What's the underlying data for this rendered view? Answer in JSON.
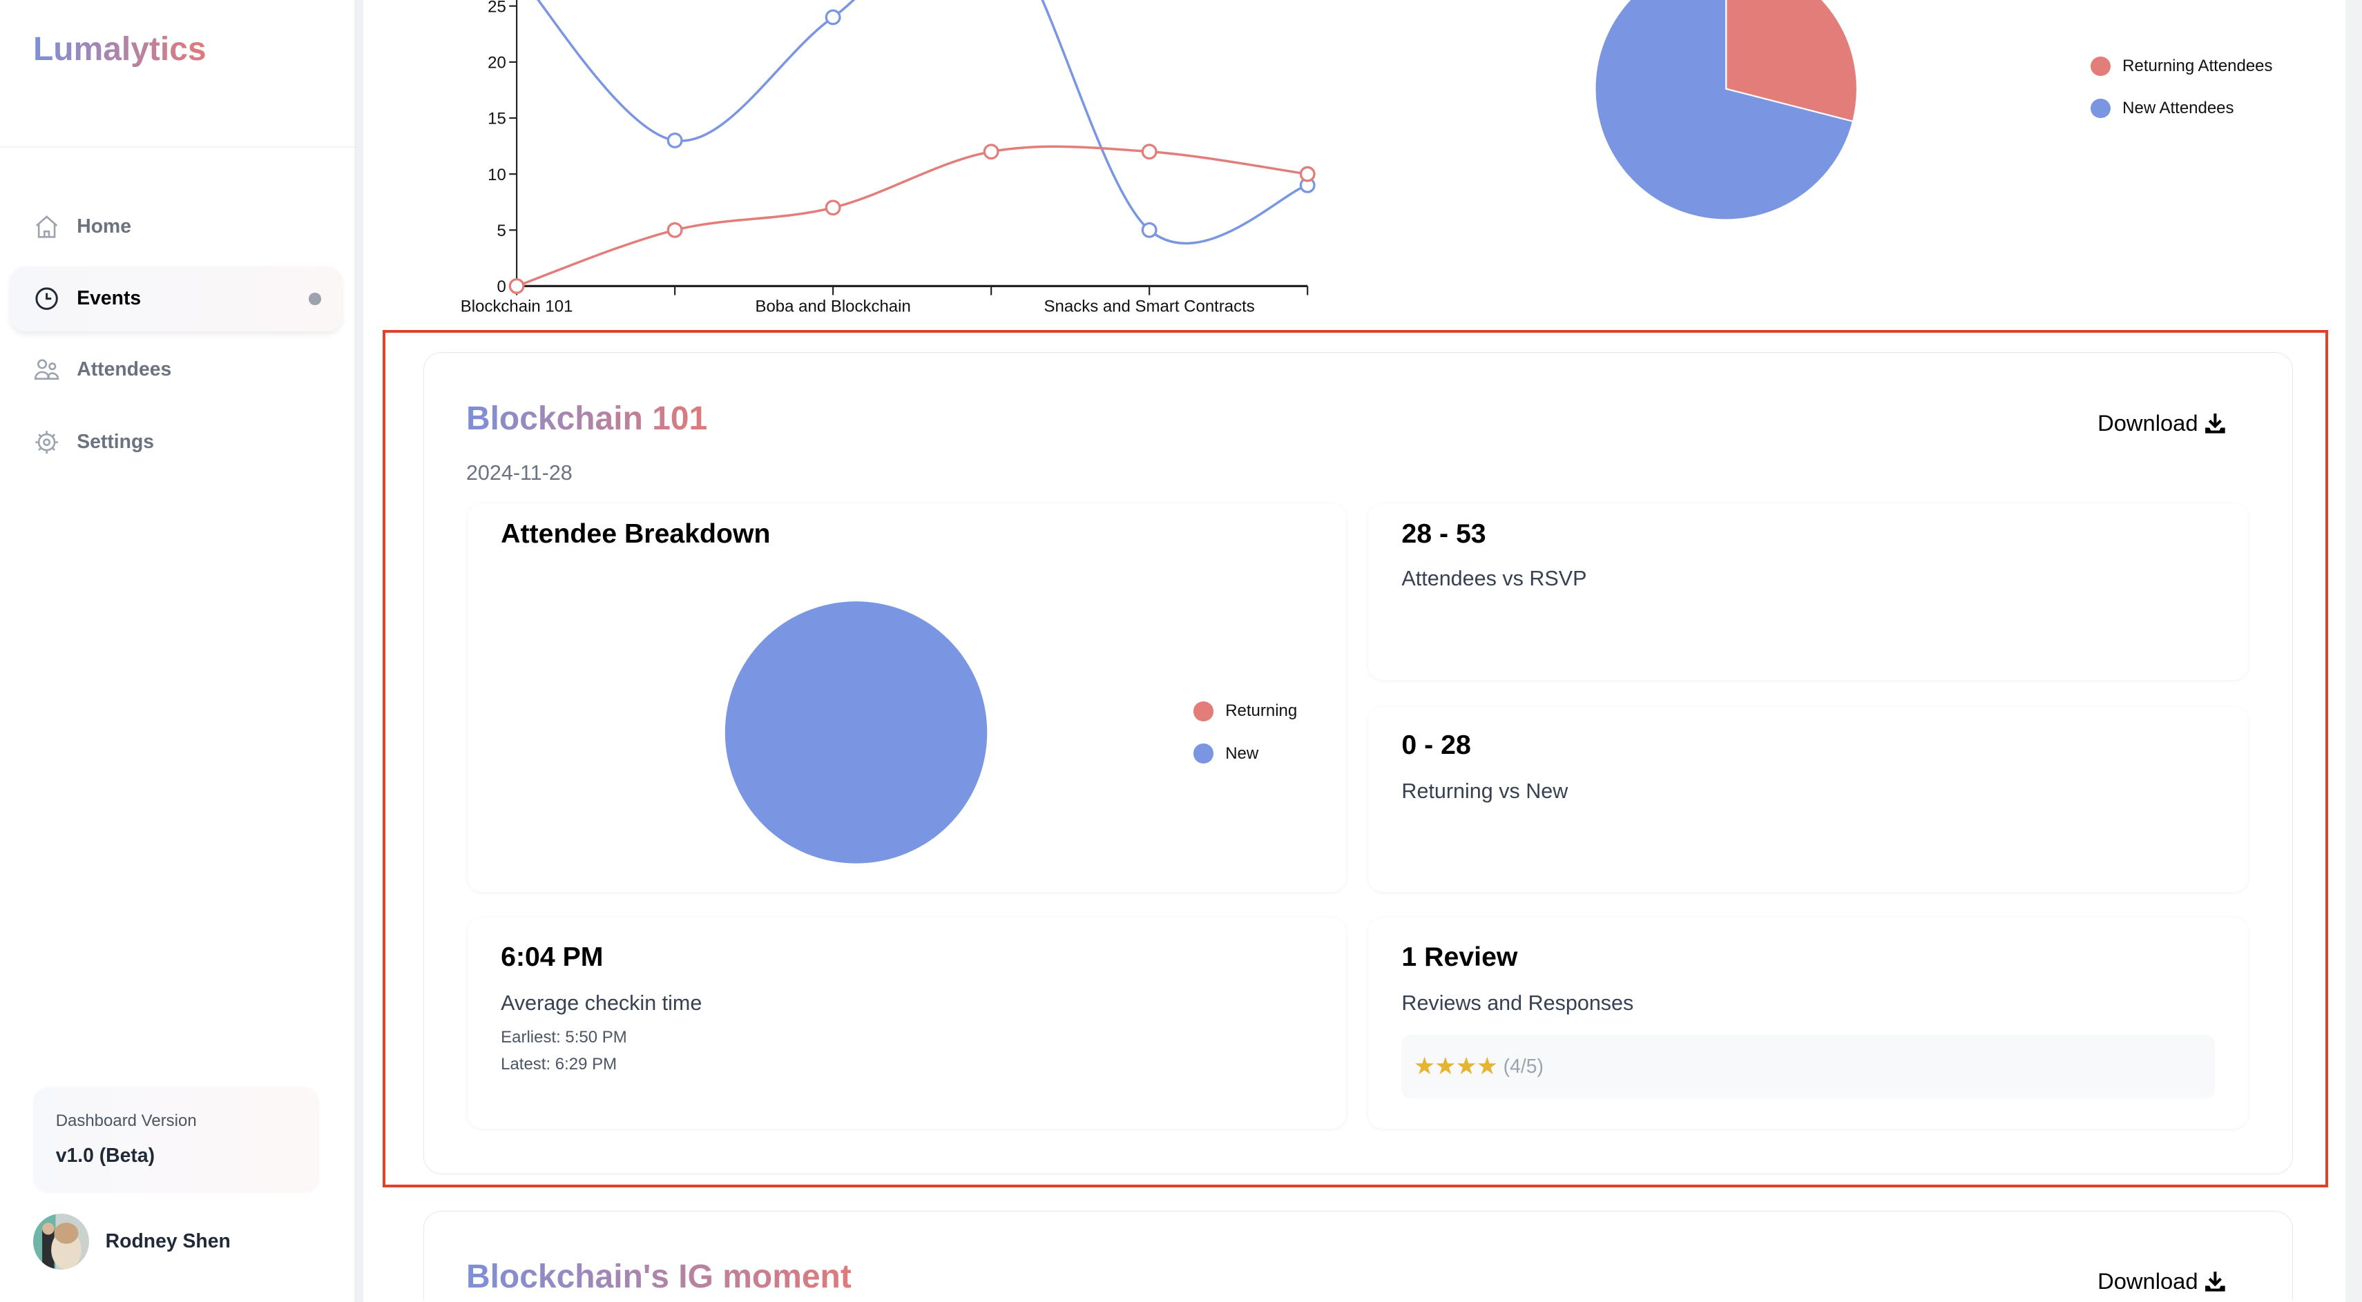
{
  "app": {
    "logo": "Lumalytics"
  },
  "sidebar": {
    "items": [
      {
        "label": "Home",
        "icon": "home-icon"
      },
      {
        "label": "Events",
        "icon": "clock-icon",
        "active": true
      },
      {
        "label": "Attendees",
        "icon": "users-icon"
      },
      {
        "label": "Settings",
        "icon": "gear-icon"
      }
    ],
    "version_label": "Dashboard Version",
    "version_value": "v1.0 (Beta)",
    "user_name": "Rodney Shen"
  },
  "colors": {
    "returning": "#e27d79",
    "new": "#7a95e2",
    "accent_gradient": [
      "#7d8fd8",
      "#df7a7a"
    ],
    "highlight": "#e0412b",
    "stars": "#e5b532"
  },
  "chart_data": [
    {
      "type": "line",
      "categories": [
        "Blockchain 101",
        "",
        "Boba and Blockchain",
        "",
        "Snacks and Smart Contracts",
        ""
      ],
      "series": [
        {
          "color": "#7a95e2",
          "values": [
            28,
            13,
            24,
            33,
            5,
            9
          ]
        },
        {
          "color": "#e27d79",
          "values": [
            0,
            5,
            7,
            12,
            12,
            10
          ]
        }
      ],
      "yticks": [
        "0",
        "5",
        "10",
        "15",
        "20",
        "25"
      ],
      "ylim": [
        0,
        25
      ],
      "grid": false
    },
    {
      "type": "pie",
      "slices": [
        {
          "name": "Returning Attendees",
          "value": 29,
          "color": "#e27d79"
        },
        {
          "name": "New Attendees",
          "value": 71,
          "color": "#7a95e2"
        }
      ],
      "legend": "right"
    }
  ],
  "events": [
    {
      "title": "Blockchain 101",
      "date": "2024-11-28",
      "download_label": "Download",
      "breakdown": {
        "title": "Attendee Breakdown",
        "slices": [
          {
            "name": "Returning",
            "value": 0,
            "color": "#e27d79"
          },
          {
            "name": "New",
            "value": 28,
            "color": "#7a95e2"
          }
        ]
      },
      "attendees_vs_rsvp": {
        "value": "28 - 53",
        "label": "Attendees vs RSVP"
      },
      "returning_vs_new": {
        "value": "0 - 28",
        "label": "Returning vs New"
      },
      "checkin": {
        "value": "6:04 PM",
        "label": "Average checkin time",
        "earliest": "Earliest: 5:50 PM",
        "latest": "Latest: 6:29 PM"
      },
      "reviews": {
        "value": "1 Review",
        "label": "Reviews and Responses",
        "stars": "★★★★",
        "rating": "(4/5)",
        "rating_value": 4
      }
    },
    {
      "title": "Blockchain's IG moment",
      "download_label": "Download"
    }
  ]
}
